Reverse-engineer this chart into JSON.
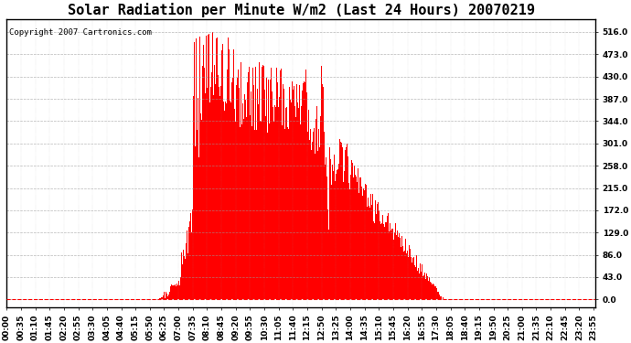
{
  "title": "Solar Radiation per Minute W/m2 (Last 24 Hours) 20070219",
  "copyright": "Copyright 2007 Cartronics.com",
  "yticks": [
    0.0,
    43.0,
    86.0,
    129.0,
    172.0,
    215.0,
    258.0,
    301.0,
    344.0,
    387.0,
    430.0,
    473.0,
    516.0
  ],
  "ymax": 540,
  "ymin": -15,
  "bar_color": "#FF0000",
  "background_color": "#FFFFFF",
  "plot_bg_color": "#FFFFFF",
  "grid_color": "#999999",
  "border_color": "#000000",
  "zero_line_color": "#FF0000",
  "title_fontsize": 11,
  "copyright_fontsize": 6.5,
  "tick_fontsize": 6.5,
  "n_minutes": 1440
}
